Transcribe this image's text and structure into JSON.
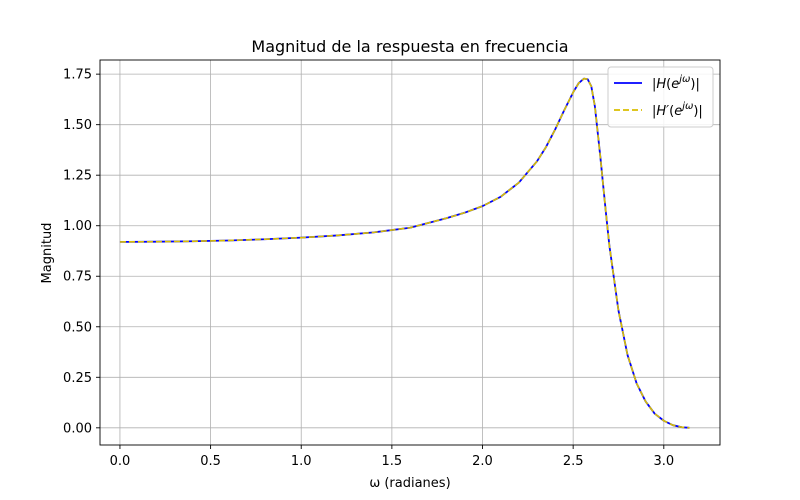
{
  "chart_data": {
    "type": "line",
    "title": "Magnitud de la respuesta en frecuencia",
    "xlabel": "ω (radianes)",
    "ylabel": "Magnitud",
    "xlim": [
      -0.11,
      3.31
    ],
    "ylim": [
      -0.085,
      1.82
    ],
    "xticks": [
      0.0,
      0.5,
      1.0,
      1.5,
      2.0,
      2.5,
      3.0
    ],
    "xtick_labels": [
      "0.0",
      "0.5",
      "1.0",
      "1.5",
      "2.0",
      "2.5",
      "3.0"
    ],
    "yticks": [
      0.0,
      0.25,
      0.5,
      0.75,
      1.0,
      1.25,
      1.5,
      1.75
    ],
    "ytick_labels": [
      "0.00",
      "0.25",
      "0.50",
      "0.75",
      "1.00",
      "1.25",
      "1.50",
      "1.75"
    ],
    "grid": true,
    "legend_position": "top-right",
    "series": [
      {
        "name": "|H(e^{jω})|",
        "color": "#0000ff",
        "style": "solid",
        "x": [
          0.0,
          0.2,
          0.4,
          0.6,
          0.8,
          1.0,
          1.2,
          1.4,
          1.6,
          1.8,
          1.9,
          2.0,
          2.1,
          2.2,
          2.3,
          2.35,
          2.4,
          2.45,
          2.5,
          2.53,
          2.56,
          2.58,
          2.6,
          2.62,
          2.65,
          2.68,
          2.7,
          2.75,
          2.8,
          2.85,
          2.9,
          2.95,
          3.0,
          3.05,
          3.1,
          3.1416
        ],
        "y": [
          0.92,
          0.921,
          0.923,
          0.927,
          0.933,
          0.941,
          0.952,
          0.967,
          0.99,
          1.037,
          1.064,
          1.097,
          1.143,
          1.213,
          1.318,
          1.389,
          1.475,
          1.57,
          1.66,
          1.705,
          1.728,
          1.725,
          1.69,
          1.59,
          1.34,
          1.07,
          0.9,
          0.58,
          0.36,
          0.22,
          0.13,
          0.07,
          0.035,
          0.013,
          0.003,
          0.0
        ]
      },
      {
        "name": "|H'(e^{jω})|",
        "color": "#d9bf00",
        "style": "dashed",
        "x": [
          0.0,
          0.2,
          0.4,
          0.6,
          0.8,
          1.0,
          1.2,
          1.4,
          1.6,
          1.8,
          1.9,
          2.0,
          2.1,
          2.2,
          2.3,
          2.35,
          2.4,
          2.45,
          2.5,
          2.53,
          2.56,
          2.58,
          2.6,
          2.62,
          2.65,
          2.68,
          2.7,
          2.75,
          2.8,
          2.85,
          2.9,
          2.95,
          3.0,
          3.05,
          3.1,
          3.1416
        ],
        "y": [
          0.92,
          0.921,
          0.923,
          0.927,
          0.933,
          0.941,
          0.952,
          0.967,
          0.99,
          1.037,
          1.064,
          1.097,
          1.143,
          1.213,
          1.318,
          1.389,
          1.475,
          1.57,
          1.66,
          1.705,
          1.728,
          1.725,
          1.69,
          1.59,
          1.34,
          1.07,
          0.9,
          0.58,
          0.36,
          0.22,
          0.13,
          0.07,
          0.035,
          0.013,
          0.003,
          0.0
        ]
      }
    ]
  }
}
